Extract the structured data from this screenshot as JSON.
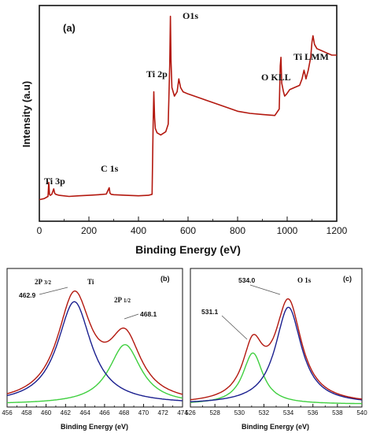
{
  "chart_data": [
    {
      "panel_label": "(a)",
      "type": "line",
      "xlabel": "Binding Energy (eV)",
      "ylabel": "Intensity (a.u)",
      "xlim": [
        0,
        1200
      ],
      "ylim": [
        0,
        100
      ],
      "x_ticks": [
        0,
        200,
        400,
        600,
        800,
        1000,
        1200
      ],
      "x_tick_labels": [
        "0",
        "200",
        "400",
        "600",
        "800",
        "1000",
        "1200"
      ],
      "grid": false,
      "colors": {
        "line": "#b3180f",
        "axis": "#111111"
      },
      "series": [
        {
          "x": [
            0,
            20,
            35,
            38,
            41,
            44,
            50,
            58,
            62,
            66,
            80,
            120,
            160,
            200,
            240,
            270,
            282,
            285,
            290,
            300,
            350,
            400,
            440,
            455,
            459,
            462,
            465,
            468,
            475,
            490,
            510,
            520,
            526,
            529,
            531,
            535,
            545,
            556,
            563,
            570,
            580,
            600,
            650,
            700,
            750,
            800,
            850,
            900,
            950,
            968,
            972,
            975,
            978,
            985,
            990,
            998,
            1010,
            1030,
            1050,
            1060,
            1068,
            1072,
            1076,
            1085,
            1095,
            1100,
            1104,
            1110,
            1120,
            1140,
            1160,
            1180,
            1200
          ],
          "y": [
            10,
            10.5,
            11.5,
            18,
            12.5,
            12,
            12.5,
            15,
            13,
            12.5,
            12,
            11.5,
            11.8,
            12,
            12.3,
            12.6,
            15.5,
            13,
            12.5,
            12.3,
            12,
            11.8,
            12,
            12.5,
            44,
            60,
            48,
            43,
            41,
            40,
            41.5,
            45,
            72,
            95,
            75,
            62,
            58,
            60,
            66,
            62,
            60,
            59,
            57,
            55,
            53,
            51,
            50,
            49.5,
            49,
            52,
            72,
            76,
            64,
            60,
            58,
            59,
            61,
            62,
            63,
            66,
            70,
            68,
            66,
            70,
            76,
            83,
            86,
            82,
            80,
            79,
            78,
            77,
            77
          ]
        }
      ],
      "annotations": [
        {
          "text": "Ti 3p",
          "x": 42
        },
        {
          "text": "C 1s",
          "x": 285
        },
        {
          "text": "Ti 2p",
          "x": 462
        },
        {
          "text": "O1s",
          "x": 531
        },
        {
          "text": "O KLL",
          "x": 975
        },
        {
          "text": "Ti LMM",
          "x": 1104
        }
      ]
    },
    {
      "panel_label": "(b)",
      "type": "line",
      "xlabel": "Binding Energy (eV)",
      "ylabel": "",
      "xlim": [
        456,
        474
      ],
      "ylim": [
        0,
        100
      ],
      "x_ticks": [
        456,
        458,
        460,
        462,
        464,
        466,
        468,
        470,
        472,
        474
      ],
      "x_tick_labels": [
        "456",
        "458",
        "460",
        "462",
        "464",
        "466",
        "468",
        "470",
        "472",
        "474"
      ],
      "grid": false,
      "series": [
        {
          "name": "",
          "color": "#b3180f",
          "peaks": [
            {
              "center": 462.9,
              "height": 76,
              "hwhm": 2.1
            },
            {
              "center": 468.1,
              "height": 44,
              "hwhm": 2.0
            }
          ]
        },
        {
          "name": "",
          "color": "#1a1f8f",
          "peaks": [
            {
              "center": 462.9,
              "height": 74,
              "hwhm": 2.1
            }
          ]
        },
        {
          "name": "",
          "color": "#3fcf3f",
          "peaks": [
            {
              "center": 468.1,
              "height": 43,
              "hwhm": 2.0
            }
          ]
        }
      ],
      "annotations": [
        {
          "text": "Ti",
          "x": 464.2
        },
        {
          "text": "462.9",
          "x": 462.9
        },
        {
          "text": "468.1",
          "x": 468.1
        }
      ],
      "sub_annotations": [
        {
          "main": "2P",
          "sub": "3/2"
        },
        {
          "main": "2P",
          "sub": "1/2"
        }
      ]
    },
    {
      "panel_label": "(c)",
      "type": "line",
      "xlabel": "Binding Energy (eV)",
      "ylabel": "",
      "xlim": [
        526,
        540
      ],
      "ylim": [
        0,
        100
      ],
      "x_ticks": [
        526,
        528,
        530,
        532,
        534,
        536,
        538,
        540
      ],
      "x_tick_labels": [
        "526",
        "528",
        "530",
        "532",
        "534",
        "536",
        "538",
        "540"
      ],
      "grid": false,
      "series": [
        {
          "name": "",
          "color": "#b3180f",
          "peaks": [
            {
              "center": 534.0,
              "height": 72,
              "hwhm": 1.3
            },
            {
              "center": 531.1,
              "height": 38,
              "hwhm": 1.0
            }
          ]
        },
        {
          "name": "",
          "color": "#1a1f8f",
          "peaks": [
            {
              "center": 534.0,
              "height": 70,
              "hwhm": 1.3
            }
          ]
        },
        {
          "name": "",
          "color": "#3fcf3f",
          "peaks": [
            {
              "center": 531.1,
              "height": 37,
              "hwhm": 1.0
            }
          ]
        }
      ],
      "annotations": [
        {
          "text": "534.0",
          "x": 534.0
        },
        {
          "text": "O 1s",
          "x": 535.8
        },
        {
          "text": "531.1",
          "x": 531.1
        }
      ]
    }
  ]
}
